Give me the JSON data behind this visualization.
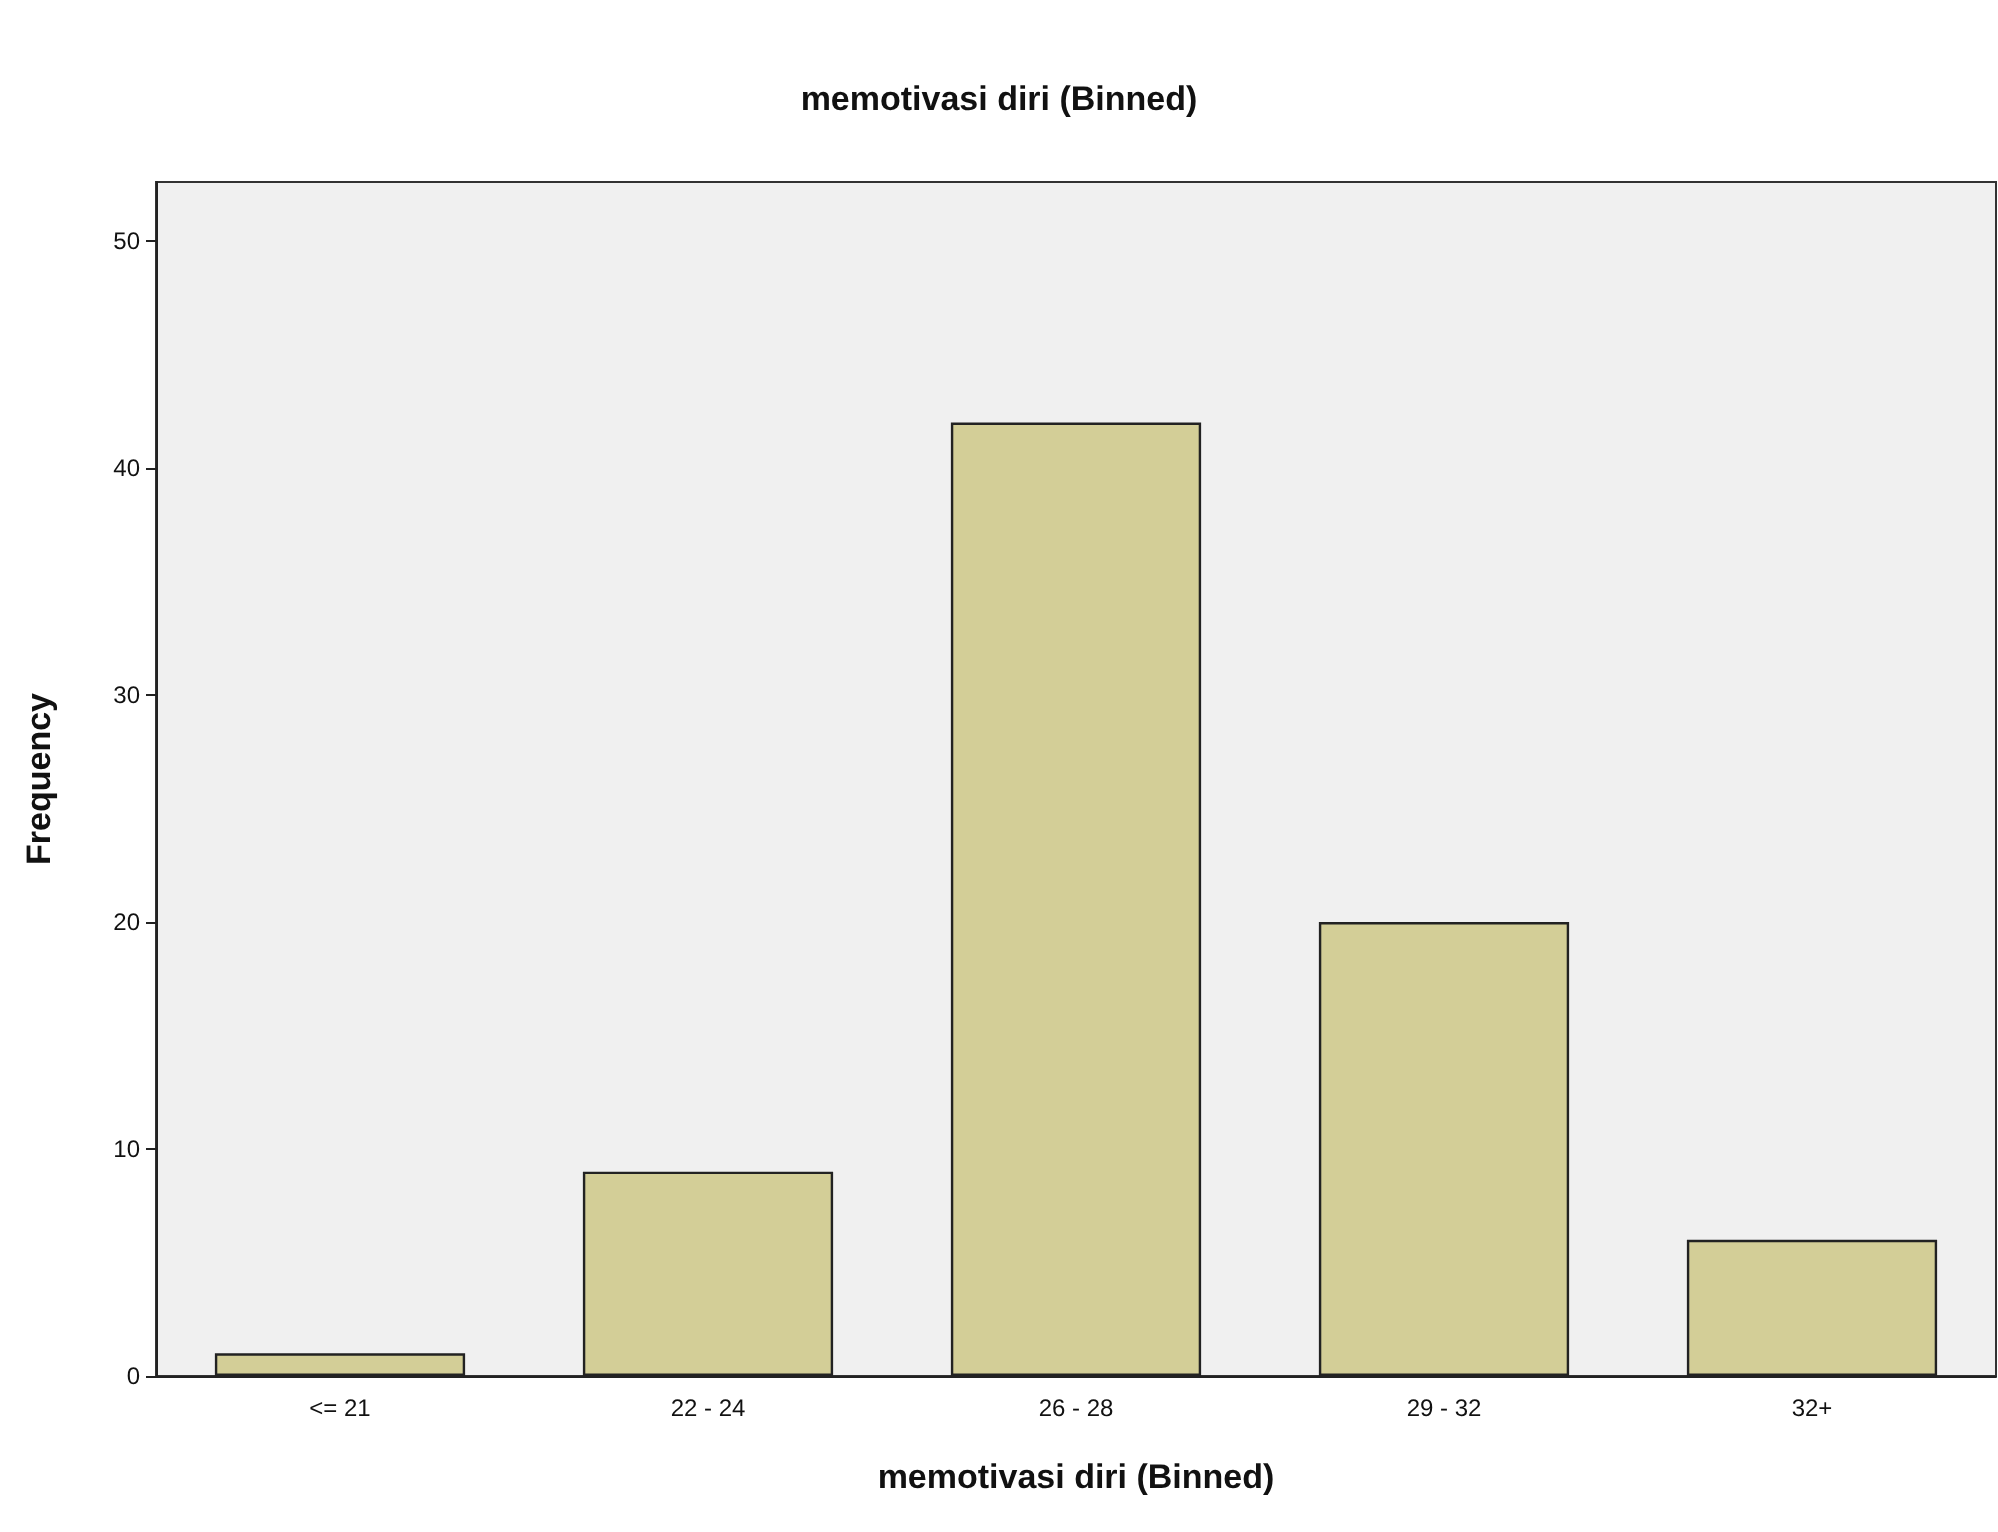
{
  "chart_data": {
    "type": "bar",
    "title": "memotivasi diri (Binned)",
    "xlabel": "memotivasi diri (Binned)",
    "ylabel": "Frequency",
    "categories": [
      "<= 21",
      "22 - 24",
      "26 - 28",
      "29 - 32",
      "32+"
    ],
    "values": [
      1,
      9,
      42,
      20,
      6
    ],
    "color": "#d3ce97",
    "ylim": [
      0,
      52.6
    ],
    "yticks": [
      0,
      10,
      20,
      30,
      40,
      50
    ],
    "grid": false
  }
}
